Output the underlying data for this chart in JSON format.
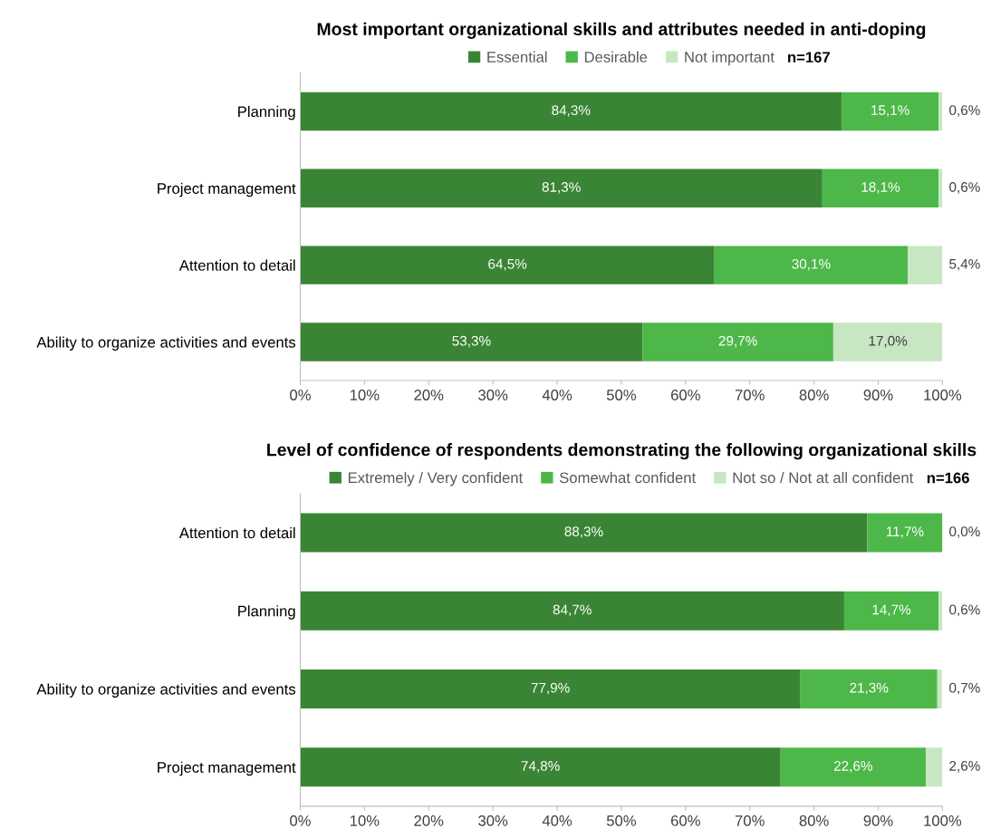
{
  "chart_data": [
    {
      "type": "bar",
      "orientation": "horizontal",
      "stacked": true,
      "title": "Most important organizational skills and attributes needed in anti-doping",
      "legend": "top",
      "annotations": [
        "n=167"
      ],
      "categories": [
        "Planning",
        "Project management",
        "Attention to detail",
        "Ability to organize activities and events"
      ],
      "series": [
        {
          "name": "Essential",
          "color": "#3a8535",
          "values": [
            84.3,
            81.3,
            64.5,
            53.3
          ],
          "value_labels": [
            "84,3%",
            "81,3%",
            "64,5%",
            "53,3%"
          ]
        },
        {
          "name": "Desirable",
          "color": "#4db849",
          "values": [
            15.1,
            18.1,
            30.1,
            29.7
          ],
          "value_labels": [
            "15,1%",
            "18,1%",
            "30,1%",
            "29,7%"
          ]
        },
        {
          "name": "Not important",
          "color": "#c7e7c3",
          "values": [
            0.6,
            0.6,
            5.4,
            17.0
          ],
          "value_labels": [
            "0,6%",
            "0,6%",
            "5,4%",
            "17,0%"
          ]
        }
      ],
      "xlim": [
        0,
        100
      ],
      "xticks": [
        {
          "value": 0,
          "label": "0%"
        },
        {
          "value": 10,
          "label": "10%"
        },
        {
          "value": 20,
          "label": "20%"
        },
        {
          "value": 30,
          "label": "30%"
        },
        {
          "value": 40,
          "label": "40%"
        },
        {
          "value": 50,
          "label": "50%"
        },
        {
          "value": 60,
          "label": "60%"
        },
        {
          "value": 70,
          "label": "70%"
        },
        {
          "value": 80,
          "label": "80%"
        },
        {
          "value": 90,
          "label": "90%"
        },
        {
          "value": 100,
          "label": "100%"
        }
      ],
      "grid": false
    },
    {
      "type": "bar",
      "orientation": "horizontal",
      "stacked": true,
      "title": "Level of confidence of respondents demonstrating the following organizational skills",
      "legend": "top",
      "annotations": [
        "n=166"
      ],
      "categories": [
        "Attention to detail",
        "Planning",
        "Ability to organize activities and events",
        "Project management"
      ],
      "series": [
        {
          "name": "Extremely / Very confident",
          "color": "#3a8535",
          "values": [
            88.3,
            84.7,
            77.9,
            74.8
          ],
          "value_labels": [
            "88,3%",
            "84,7%",
            "77,9%",
            "74,8%"
          ]
        },
        {
          "name": "Somewhat confident",
          "color": "#4db849",
          "values": [
            11.7,
            14.7,
            21.3,
            22.6
          ],
          "value_labels": [
            "11,7%",
            "14,7%",
            "21,3%",
            "22,6%"
          ]
        },
        {
          "name": "Not so / Not at all confident",
          "color": "#c7e7c3",
          "values": [
            0.0,
            0.6,
            0.7,
            2.6
          ],
          "value_labels": [
            "0,0%",
            "0,6%",
            "0,7%",
            "2,6%"
          ]
        }
      ],
      "xlim": [
        0,
        100
      ],
      "xticks": [
        {
          "value": 0,
          "label": "0%"
        },
        {
          "value": 10,
          "label": "10%"
        },
        {
          "value": 20,
          "label": "20%"
        },
        {
          "value": 30,
          "label": "30%"
        },
        {
          "value": 40,
          "label": "40%"
        },
        {
          "value": 50,
          "label": "50%"
        },
        {
          "value": 60,
          "label": "60%"
        },
        {
          "value": 70,
          "label": "70%"
        },
        {
          "value": 80,
          "label": "80%"
        },
        {
          "value": 90,
          "label": "90%"
        },
        {
          "value": 100,
          "label": "100%"
        }
      ],
      "grid": false
    }
  ]
}
